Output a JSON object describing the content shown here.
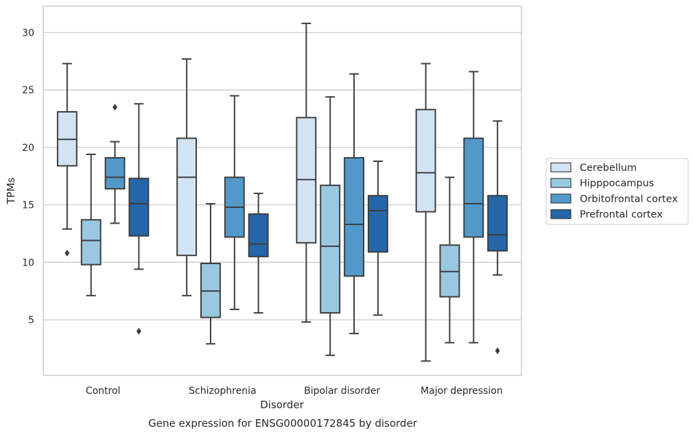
{
  "chart_data": {
    "type": "box",
    "title": "",
    "caption": "Gene expression for ENSG00000172845 by disorder",
    "xlabel": "Disorder",
    "ylabel": "TPMs",
    "ylim": [
      0,
      32.3
    ],
    "yticks": [
      5,
      10,
      15,
      20,
      25,
      30
    ],
    "grid": "horizontal",
    "legend_position": "right",
    "categories": [
      "Control",
      "Schizophrenia",
      "Bipolar disorder",
      "Major depression"
    ],
    "series": [
      {
        "name": "Cerebellum",
        "color": "#d2e3f3",
        "boxes": [
          {
            "whisker_low": 12.9,
            "q1": 18.4,
            "median": 20.7,
            "q3": 23.1,
            "whisker_high": 27.3,
            "outliers": [
              10.8
            ]
          },
          {
            "whisker_low": 7.1,
            "q1": 10.6,
            "median": 17.4,
            "q3": 20.8,
            "whisker_high": 27.7,
            "outliers": []
          },
          {
            "whisker_low": 4.8,
            "q1": 11.7,
            "median": 17.2,
            "q3": 22.6,
            "whisker_high": 30.8,
            "outliers": []
          },
          {
            "whisker_low": 1.4,
            "q1": 14.4,
            "median": 17.8,
            "q3": 23.3,
            "whisker_high": 27.3,
            "outliers": []
          }
        ]
      },
      {
        "name": "Hipppocampus",
        "color": "#9ac8e0",
        "boxes": [
          {
            "whisker_low": 7.1,
            "q1": 9.8,
            "median": 11.9,
            "q3": 13.7,
            "whisker_high": 19.4,
            "outliers": []
          },
          {
            "whisker_low": 2.9,
            "q1": 5.2,
            "median": 7.5,
            "q3": 9.9,
            "whisker_high": 15.1,
            "outliers": []
          },
          {
            "whisker_low": 1.9,
            "q1": 5.6,
            "median": 11.4,
            "q3": 16.7,
            "whisker_high": 24.4,
            "outliers": []
          },
          {
            "whisker_low": 3.0,
            "q1": 7.0,
            "median": 9.2,
            "q3": 11.5,
            "whisker_high": 17.4,
            "outliers": []
          }
        ]
      },
      {
        "name": "Orbitofrontal cortex",
        "color": "#5299c9",
        "boxes": [
          {
            "whisker_low": 13.4,
            "q1": 16.4,
            "median": 17.4,
            "q3": 19.1,
            "whisker_high": 20.5,
            "outliers": [
              23.5
            ]
          },
          {
            "whisker_low": 5.9,
            "q1": 12.2,
            "median": 14.8,
            "q3": 17.4,
            "whisker_high": 24.5,
            "outliers": []
          },
          {
            "whisker_low": 3.8,
            "q1": 8.8,
            "median": 13.3,
            "q3": 19.1,
            "whisker_high": 26.4,
            "outliers": []
          },
          {
            "whisker_low": 3.0,
            "q1": 12.2,
            "median": 15.1,
            "q3": 20.8,
            "whisker_high": 26.6,
            "outliers": []
          }
        ]
      },
      {
        "name": "Prefrontal cortex",
        "color": "#2466a8",
        "boxes": [
          {
            "whisker_low": 9.4,
            "q1": 12.3,
            "median": 15.1,
            "q3": 17.3,
            "whisker_high": 23.8,
            "outliers": [
              4.0
            ]
          },
          {
            "whisker_low": 5.6,
            "q1": 10.5,
            "median": 11.6,
            "q3": 14.2,
            "whisker_high": 16.0,
            "outliers": []
          },
          {
            "whisker_low": 5.4,
            "q1": 10.9,
            "median": 14.5,
            "q3": 15.8,
            "whisker_high": 18.8,
            "outliers": []
          },
          {
            "whisker_low": 8.9,
            "q1": 11.0,
            "median": 12.4,
            "q3": 15.8,
            "whisker_high": 22.3,
            "outliers": [
              2.3
            ]
          }
        ]
      }
    ]
  }
}
